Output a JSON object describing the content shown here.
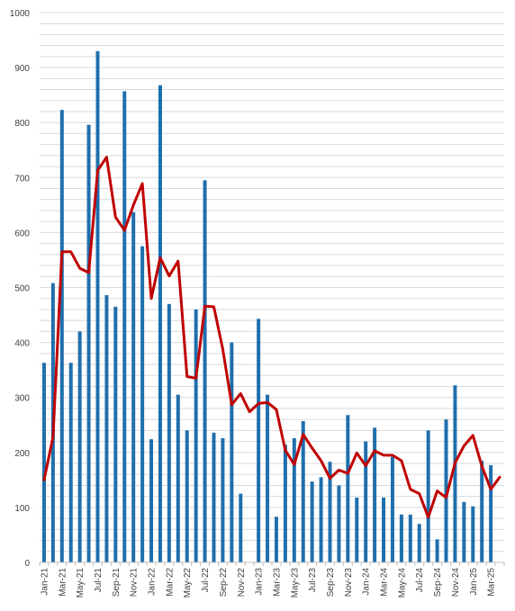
{
  "chart_data": {
    "type": "bar",
    "categories": [
      "Jan-21",
      "Feb-21",
      "Mar-21",
      "Apr-21",
      "May-21",
      "Jun-21",
      "Jul-21",
      "Aug-21",
      "Sep-21",
      "Oct-21",
      "Nov-21",
      "Dec-21",
      "Jan-22",
      "Feb-22",
      "Mar-22",
      "Apr-22",
      "May-22",
      "Jun-22",
      "Jul-22",
      "Aug-22",
      "Sep-22",
      "Oct-22",
      "Nov-22",
      "Dec-22",
      "Jan-23",
      "Feb-23",
      "Mar-23",
      "Apr-23",
      "May-23",
      "Jun-23",
      "Jul-23",
      "Aug-23",
      "Sep-23",
      "Oct-23",
      "Nov-23",
      "Dec-23",
      "Jan-24",
      "Feb-24",
      "Mar-24",
      "Apr-24",
      "May-24",
      "Jun-24",
      "Jul-24",
      "Aug-24",
      "Sep-24",
      "Oct-24",
      "Nov-24",
      "Dec-24",
      "Jan-25",
      "Feb-25",
      "Mar-25",
      "Apr-25"
    ],
    "x_tick_labels": [
      "Jan-21",
      "Mar-21",
      "May-21",
      "Jul-21",
      "Sep-21",
      "Nov-21",
      "Jan-22",
      "Mar-22",
      "May-22",
      "Jul-22",
      "Sep-22",
      "Nov-22",
      "Jan-23",
      "Mar-23",
      "May-23",
      "Jul-23",
      "Sep-23",
      "Nov-23",
      "Jan-24",
      "Mar-24",
      "May-24",
      "Jul-24",
      "Sep-24",
      "Nov-24",
      "Jan-25",
      "Mar-25"
    ],
    "series": [
      {
        "kind": "bar",
        "color": "#1f6fad",
        "values": [
          363,
          508,
          823,
          363,
          420,
          796,
          930,
          486,
          465,
          857,
          637,
          575,
          224,
          868,
          470,
          305,
          240,
          460,
          695,
          236,
          226,
          400,
          125,
          0,
          443,
          305,
          83,
          214,
          226,
          257,
          147,
          155,
          183,
          140,
          268,
          118,
          220,
          245,
          118,
          192,
          87,
          87,
          70,
          240,
          42,
          260,
          322,
          110,
          102,
          185,
          177,
          0
        ]
      },
      {
        "kind": "line",
        "color": "#c00000",
        "values": [
          150,
          228,
          565,
          565,
          535,
          527,
          713,
          737,
          628,
          604,
          650,
          689,
          480,
          554,
          521,
          548,
          338,
          335,
          466,
          465,
          388,
          287,
          307,
          274,
          289,
          291,
          278,
          204,
          178,
          233,
          208,
          185,
          153,
          168,
          162,
          199,
          176,
          203,
          195,
          195,
          185,
          133,
          125,
          82,
          130,
          118,
          181,
          212,
          231,
          175,
          133,
          155
        ]
      }
    ],
    "ylim": [
      0,
      1000
    ],
    "y_ticks": [
      0,
      100,
      200,
      300,
      400,
      500,
      600,
      700,
      800,
      900,
      1000
    ],
    "grid": true,
    "legend": "none"
  }
}
